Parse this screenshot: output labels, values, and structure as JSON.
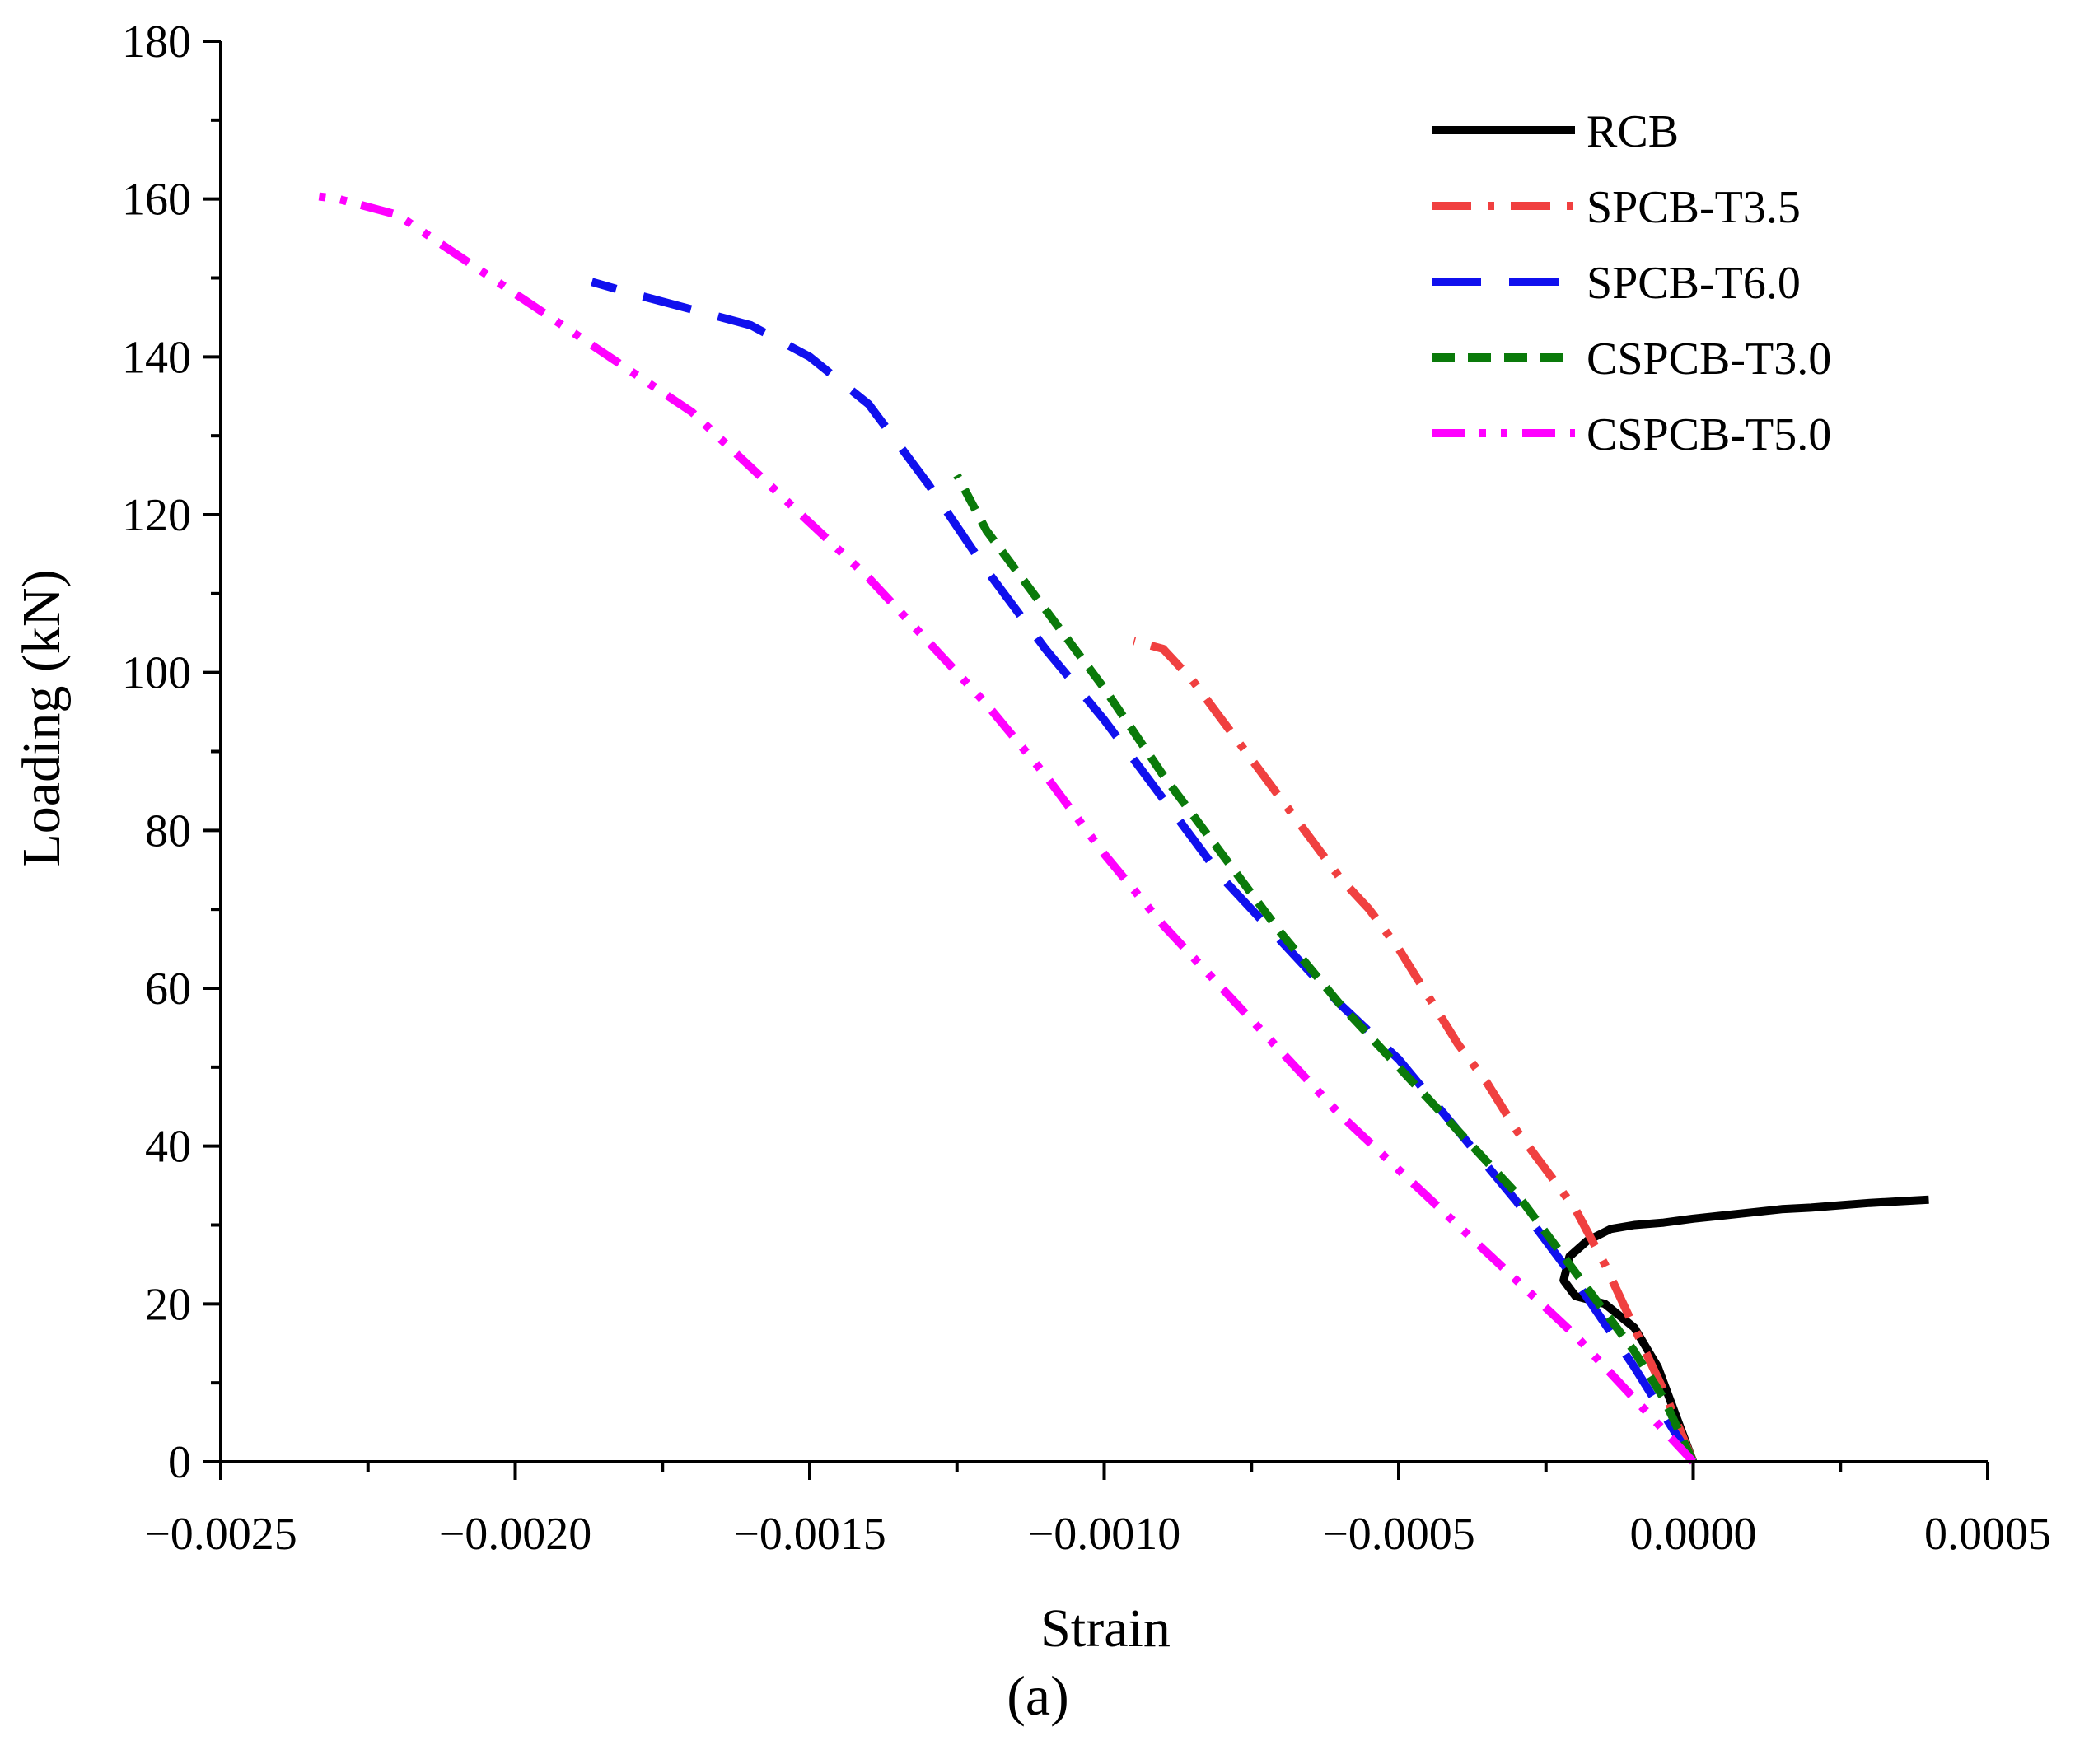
{
  "chart_data": {
    "type": "line",
    "title": "",
    "xlabel": "Strain",
    "ylabel": "Loading (kN)",
    "panel_label": "(a)",
    "xlim": [
      -0.0025,
      0.0005
    ],
    "ylim": [
      0,
      180
    ],
    "x_ticks": [
      -0.0025,
      -0.002,
      -0.0015,
      -0.001,
      -0.0005,
      0.0,
      0.0005
    ],
    "x_tick_labels": [
      "−0.0025",
      "−0.0020",
      "−0.0015",
      "−0.0010",
      "−0.0005",
      "0.0000",
      "0.0005"
    ],
    "y_ticks": [
      0,
      20,
      40,
      60,
      80,
      100,
      120,
      140,
      160,
      180
    ],
    "y_tick_labels": [
      "0",
      "20",
      "40",
      "60",
      "80",
      "100",
      "120",
      "140",
      "160",
      "180"
    ],
    "grid": false,
    "legend_position": "top-right",
    "series": [
      {
        "name": "RCB",
        "color": "#000000",
        "dash": "solid",
        "x": [
          0.0,
          -3e-05,
          -6e-05,
          -0.0001,
          -0.00015,
          -0.0002,
          -0.00022,
          -0.00021,
          -0.00018,
          -0.00014,
          -0.0001,
          -5e-05,
          0.0,
          5e-05,
          0.0001,
          0.00015,
          0.0002,
          0.00025,
          0.0003,
          0.00035,
          0.0004
        ],
        "y": [
          0,
          6,
          12,
          17,
          20,
          21,
          23,
          26,
          28,
          29.5,
          30,
          30.3,
          30.8,
          31.2,
          31.6,
          32,
          32.2,
          32.5,
          32.8,
          33,
          33.2
        ]
      },
      {
        "name": "SPCB-T3.5",
        "color": "#f04040",
        "dash": "dashdot",
        "x": [
          0.0,
          -5e-05,
          -0.0001,
          -0.00015,
          -0.0002,
          -0.00025,
          -0.0003,
          -0.00035,
          -0.0004,
          -0.00045,
          -0.0005,
          -0.00055,
          -0.0006,
          -0.00065,
          -0.0007,
          -0.00075,
          -0.0008,
          -0.00085,
          -0.0009,
          -0.00095
        ],
        "y": [
          0,
          9,
          17,
          25,
          32,
          37,
          42,
          48,
          53,
          59,
          65,
          70,
          74,
          79,
          84,
          89,
          94,
          99,
          103,
          104
        ]
      },
      {
        "name": "SPCB-T6.0",
        "color": "#1010ee",
        "dash": "longdash",
        "x": [
          0.0,
          -5e-05,
          -0.0001,
          -0.0002,
          -0.0003,
          -0.0004,
          -0.0005,
          -0.0006,
          -0.0007,
          -0.0008,
          -0.0009,
          -0.001,
          -0.0011,
          -0.0012,
          -0.0013,
          -0.0014,
          -0.0015,
          -0.0016,
          -0.0017,
          -0.0018,
          -0.00187
        ],
        "y": [
          0,
          6,
          12,
          23,
          33,
          42,
          51,
          58,
          66,
          74,
          84,
          94,
          103,
          113,
          124,
          134,
          140,
          144,
          146,
          148,
          149.5
        ]
      },
      {
        "name": "CSPCB-T3.0",
        "color": "#0a7a0a",
        "dash": "dashed",
        "x": [
          0.0,
          -5e-05,
          -0.0001,
          -0.0002,
          -0.0003,
          -0.0004,
          -0.0005,
          -0.0006,
          -0.0007,
          -0.0008,
          -0.0009,
          -0.001,
          -0.0011,
          -0.0012,
          -0.00125
        ],
        "y": [
          0,
          8,
          14,
          24,
          34,
          42,
          50,
          58,
          67,
          77,
          87,
          98,
          108,
          118,
          125
        ]
      },
      {
        "name": "CSPCB-T5.0",
        "color": "#ff00ff",
        "dash": "dashdotdot",
        "x": [
          0.0,
          -0.0001,
          -0.0002,
          -0.0003,
          -0.0004,
          -0.0005,
          -0.0006,
          -0.0007,
          -0.0008,
          -0.0009,
          -0.001,
          -0.0011,
          -0.0012,
          -0.0013,
          -0.0014,
          -0.0015,
          -0.0016,
          -0.0017,
          -0.0018,
          -0.0019,
          -0.002,
          -0.0021,
          -0.0022,
          -0.0023,
          -0.00235
        ],
        "y": [
          0,
          8,
          16,
          23,
          30,
          37,
          44,
          52,
          60,
          68,
          77,
          87,
          96,
          104,
          112,
          119,
          126,
          133,
          138,
          143,
          148,
          153,
          158,
          160,
          160.5
        ]
      }
    ]
  }
}
